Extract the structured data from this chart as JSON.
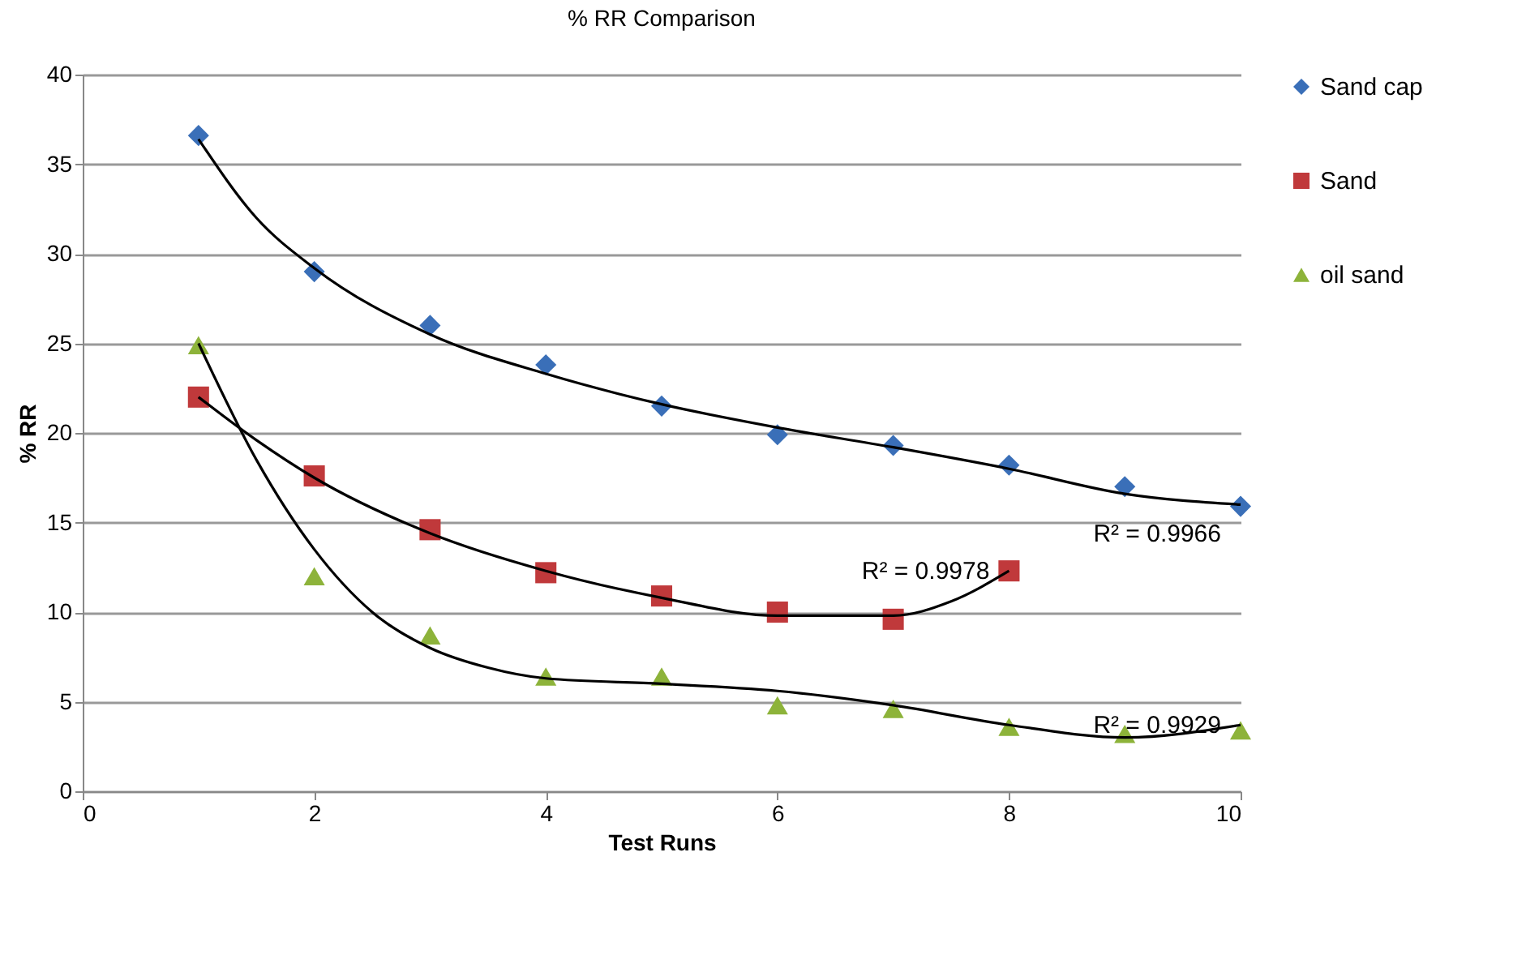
{
  "chart_data": {
    "type": "scatter",
    "title": "% RR Comparison",
    "xlabel": "Test Runs",
    "ylabel": "% RR",
    "xlim": [
      0,
      10
    ],
    "xticks": [
      0,
      2,
      4,
      6,
      8,
      10
    ],
    "ylim": [
      0,
      40
    ],
    "yticks": [
      0,
      5,
      10,
      15,
      20,
      25,
      30,
      35,
      40
    ],
    "grid": "y",
    "legend": "right",
    "series": [
      {
        "name": "Sand cap",
        "marker": "diamond",
        "color": "#3a6fb8",
        "x": [
          1,
          2,
          3,
          4,
          5,
          6,
          7,
          8,
          9,
          10
        ],
        "values": [
          36.6,
          29.0,
          26.0,
          23.8,
          21.5,
          19.9,
          19.3,
          18.2,
          17.0,
          15.9
        ]
      },
      {
        "name": "Sand",
        "marker": "square",
        "color": "#c0393b",
        "x": [
          1,
          2,
          3,
          4,
          5,
          6,
          7,
          8
        ],
        "values": [
          22.0,
          17.6,
          14.6,
          12.2,
          10.9,
          10.0,
          9.6,
          12.3
        ]
      },
      {
        "name": "oil sand",
        "marker": "triangle",
        "color": "#8db33a",
        "x": [
          1,
          2,
          3,
          4,
          5,
          6,
          7,
          8,
          9,
          10
        ],
        "values": [
          24.9,
          12.0,
          8.7,
          6.4,
          6.4,
          4.8,
          4.6,
          3.6,
          3.2,
          3.4
        ]
      },
      {
        "type": "line",
        "color": "#000000",
        "line_style": "solid",
        "x": [
          1,
          1.5,
          2,
          3,
          4,
          5,
          6,
          7,
          8,
          9,
          10
        ],
        "values": [
          36.4,
          32.0,
          29.2,
          25.5,
          23.3,
          21.6,
          20.3,
          19.2,
          18.0,
          16.6,
          16.0
        ]
      },
      {
        "type": "line",
        "color": "#000000",
        "line_style": "solid",
        "x": [
          1,
          1.5,
          2,
          3,
          4,
          5,
          6,
          7,
          7.5,
          8
        ],
        "values": [
          22.0,
          19.6,
          17.5,
          14.4,
          12.3,
          10.8,
          9.8,
          9.8,
          10.6,
          12.3
        ]
      },
      {
        "type": "line",
        "color": "#000000",
        "line_style": "solid",
        "x": [
          1,
          1.5,
          2,
          2.5,
          3,
          3.5,
          4,
          5,
          6,
          7,
          8,
          9,
          10
        ],
        "values": [
          25.0,
          18.5,
          13.5,
          10.0,
          8.0,
          6.9,
          6.3,
          6.0,
          5.6,
          4.8,
          3.7,
          3.0,
          3.7
        ]
      }
    ],
    "annotations": [
      "R² = 0.9966",
      "R² = 0.9978",
      "R² = 0.9929"
    ]
  }
}
